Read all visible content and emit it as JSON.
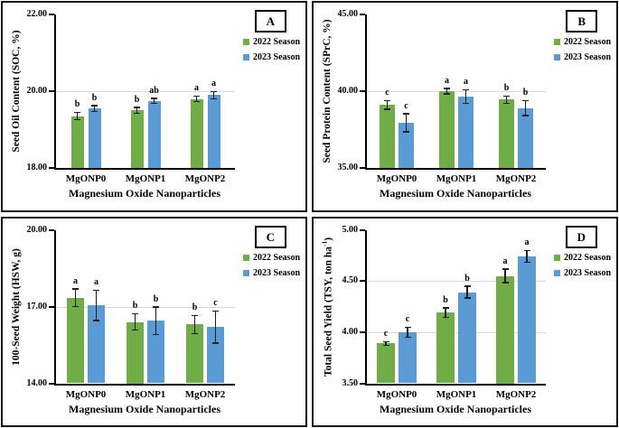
{
  "colors": {
    "season2022": "#70AD47",
    "season2023": "#5B9BD5",
    "grid": "#D9D9D9",
    "error_bar": "#1C1C1C",
    "axis": "#000000"
  },
  "legend": {
    "items": [
      {
        "label": "2022 Season",
        "color": "season2022"
      },
      {
        "label": "2023 Season",
        "color": "season2023"
      }
    ]
  },
  "chart_data": [
    {
      "panel_letter": "A",
      "type": "bar",
      "y_label": "Seed Oil Content (SOC, %)",
      "x_label": "Magnesium Oxide Nanoparticles",
      "ylim": [
        18,
        22
      ],
      "yticks": [
        {
          "value": 18,
          "label": "18.00"
        },
        {
          "value": 20,
          "label": "20.00"
        },
        {
          "value": 22,
          "label": "22.00"
        }
      ],
      "grid": "horizontal-interior",
      "legend_position": "right",
      "categories": [
        "MgONP0",
        "MgONP1",
        "MgONP2"
      ],
      "series": [
        {
          "name": "2022 Season",
          "color": "season2022",
          "values": [
            19.35,
            19.5,
            19.8
          ],
          "errors": [
            0.1,
            0.08,
            0.08
          ],
          "letters": [
            "b",
            "b",
            "a"
          ]
        },
        {
          "name": "2023 Season",
          "color": "season2023",
          "values": [
            19.55,
            19.75,
            19.9
          ],
          "errors": [
            0.08,
            0.07,
            0.1
          ],
          "letters": [
            "b",
            "ab",
            "a"
          ]
        }
      ]
    },
    {
      "panel_letter": "B",
      "type": "bar",
      "y_label": "Seed Protein Content (SPrC, %)",
      "x_label": "Magnesium Oxide Nanoparticles",
      "ylim": [
        35,
        45
      ],
      "yticks": [
        {
          "value": 35,
          "label": "35.00"
        },
        {
          "value": 40,
          "label": "40.00"
        },
        {
          "value": 45,
          "label": "45.00"
        }
      ],
      "grid": "horizontal-interior",
      "legend_position": "right",
      "categories": [
        "MgONP0",
        "MgONP1",
        "MgONP2"
      ],
      "series": [
        {
          "name": "2022 Season",
          "color": "season2022",
          "values": [
            39.1,
            40.0,
            39.45
          ],
          "errors": [
            0.3,
            0.2,
            0.25
          ],
          "letters": [
            "c",
            "a",
            "b"
          ]
        },
        {
          "name": "2023 Season",
          "color": "season2023",
          "values": [
            37.95,
            39.65,
            38.9
          ],
          "errors": [
            0.6,
            0.45,
            0.5
          ],
          "letters": [
            "c",
            "a",
            "b"
          ]
        }
      ]
    },
    {
      "panel_letter": "C",
      "type": "bar",
      "y_label": "100-Seed Weight (HSW, g)",
      "x_label": "Magnesium Oxide Nanoparticles",
      "ylim": [
        14,
        20
      ],
      "yticks": [
        {
          "value": 14,
          "label": "14.00"
        },
        {
          "value": 17,
          "label": "17.00"
        },
        {
          "value": 20,
          "label": "20.00"
        }
      ],
      "grid": "horizontal-interior",
      "legend_position": "right",
      "categories": [
        "MgONP0",
        "MgONP1",
        "MgONP2"
      ],
      "series": [
        {
          "name": "2022 Season",
          "color": "season2022",
          "values": [
            17.35,
            16.4,
            16.3
          ],
          "errors": [
            0.35,
            0.33,
            0.36
          ],
          "letters": [
            "a",
            "b",
            "b"
          ]
        },
        {
          "name": "2023 Season",
          "color": "season2023",
          "values": [
            17.05,
            16.45,
            16.2
          ],
          "errors": [
            0.6,
            0.55,
            0.63
          ],
          "letters": [
            "a",
            "b",
            "c"
          ]
        }
      ]
    },
    {
      "panel_letter": "D",
      "type": "bar",
      "y_label_main": "Total Seed Yield (TSY, ton ha",
      "y_label_sup": "-1",
      "y_label_end": ")",
      "x_label": "Magnesium Oxide Nanoparticles",
      "ylim": [
        3.5,
        5.0
      ],
      "yticks": [
        {
          "value": 3.5,
          "label": "3.50"
        },
        {
          "value": 4.0,
          "label": "4.00"
        },
        {
          "value": 4.5,
          "label": "4.50"
        },
        {
          "value": 5.0,
          "label": "5.00"
        }
      ],
      "grid": "horizontal-interior",
      "legend_position": "right",
      "categories": [
        "MgONP0",
        "MgONP1",
        "MgONP2"
      ],
      "series": [
        {
          "name": "2022 Season",
          "color": "season2022",
          "values": [
            3.89,
            4.19,
            4.55
          ],
          "errors": [
            0.02,
            0.05,
            0.07
          ],
          "letters": [
            "c",
            "b",
            "a"
          ]
        },
        {
          "name": "2023 Season",
          "color": "season2023",
          "values": [
            4.0,
            4.39,
            4.74
          ],
          "errors": [
            0.05,
            0.06,
            0.06
          ],
          "letters": [
            "c",
            "b",
            "a"
          ]
        }
      ]
    }
  ]
}
